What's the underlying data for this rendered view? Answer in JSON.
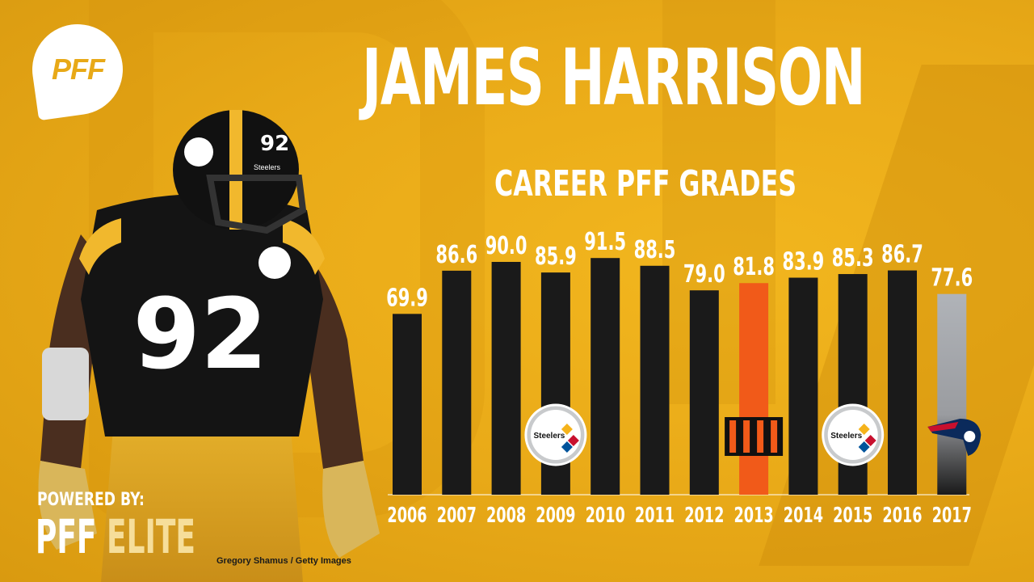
{
  "header": {
    "logo_text": "PFF",
    "title": "JAMES HARRISON",
    "subtitle": "CAREER PFF GRADES"
  },
  "player": {
    "jersey_number": "92",
    "helmet_text": "Steelers"
  },
  "footer": {
    "powered_by": "POWERED BY:",
    "brand_primary": "PFF",
    "brand_secondary": "ELITE",
    "photo_credit": "Gregory Shamus / Getty Images"
  },
  "colors": {
    "background": "#E8A917",
    "bar_default": "#1A1A1A",
    "bar_bengals": "#F15A19",
    "bar_patriots": "#B0B3B8",
    "text": "#FFFFFF"
  },
  "team_logos": [
    {
      "year": "2009",
      "team": "Steelers",
      "icon": "steelers-logo-icon",
      "text": "Steelers"
    },
    {
      "year": "2013",
      "team": "Bengals",
      "icon": "bengals-logo-icon"
    },
    {
      "year": "2015",
      "team": "Steelers",
      "icon": "steelers-logo-icon",
      "text": "Steelers"
    },
    {
      "year": "2017",
      "team": "Patriots",
      "icon": "patriots-logo-icon"
    }
  ],
  "chart_data": {
    "type": "bar",
    "title": "CAREER PFF GRADES",
    "categories": [
      "2006",
      "2007",
      "2008",
      "2009",
      "2010",
      "2011",
      "2012",
      "2013",
      "2014",
      "2015",
      "2016",
      "2017"
    ],
    "values": [
      69.9,
      86.6,
      90.0,
      85.9,
      91.5,
      88.5,
      79.0,
      81.8,
      83.9,
      85.3,
      86.7,
      77.6
    ],
    "labels": [
      "69.9",
      "86.6",
      "90.0",
      "85.9",
      "91.5",
      "88.5",
      "79.0",
      "81.8",
      "83.9",
      "85.3",
      "86.7",
      "77.6"
    ],
    "bar_colors": [
      "#1A1A1A",
      "#1A1A1A",
      "#1A1A1A",
      "#1A1A1A",
      "#1A1A1A",
      "#1A1A1A",
      "#1A1A1A",
      "#F15A19",
      "#1A1A1A",
      "#1A1A1A",
      "#1A1A1A",
      "#B0B3B8"
    ],
    "ylim": [
      0,
      100
    ],
    "grid": false,
    "legend": "none"
  }
}
